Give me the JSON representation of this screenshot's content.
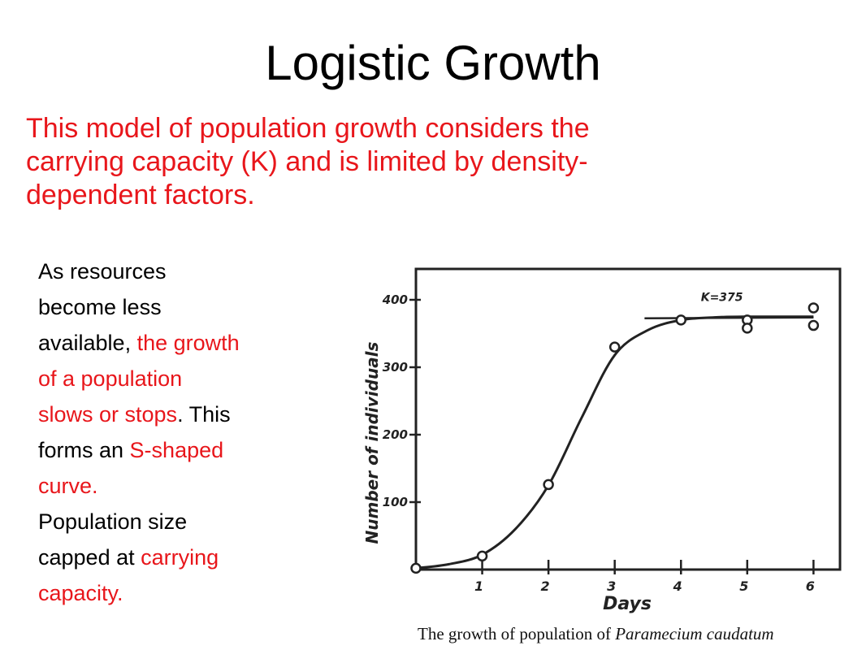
{
  "slide": {
    "title": "Logistic Growth",
    "intro_lines": [
      "This model of population growth considers the",
      "carrying capacity (K)  and is limited by density-",
      "dependent factors."
    ],
    "side_lines": [
      [
        {
          "t": "As resources",
          "red": false
        }
      ],
      [
        {
          "t": "become less",
          "red": false
        }
      ],
      [
        {
          "t": "available, ",
          "red": false
        },
        {
          "t": "the growth",
          "red": true
        }
      ],
      [
        {
          "t": "of a population",
          "red": true
        }
      ],
      [
        {
          "t": "slows or stops",
          "red": true
        },
        {
          "t": ". This",
          "red": false
        }
      ],
      [
        {
          "t": "forms an ",
          "red": false
        },
        {
          "t": "S-shaped",
          "red": true
        }
      ],
      [
        {
          "t": "curve.",
          "red": true
        }
      ],
      [
        {
          "t": " Population size",
          "red": false
        }
      ],
      [
        {
          "t": "capped at ",
          "red": false
        },
        {
          "t": "carrying",
          "red": true
        }
      ],
      [
        {
          "t": "capacity.",
          "red": true
        }
      ]
    ],
    "accent_color": "#e8161b"
  },
  "chart_data": {
    "type": "scatter",
    "xlabel": "Days",
    "ylabel": "Number of individuals",
    "caption_prefix": "The growth of population of ",
    "caption_species": "Paramecium caudatum",
    "annotation": "K=375",
    "xlim": [
      0,
      6.4
    ],
    "ylim": [
      0,
      400
    ],
    "x_ticks": [
      1,
      2,
      3,
      4,
      5,
      6
    ],
    "y_ticks": [
      100,
      200,
      300,
      400
    ],
    "carrying_capacity": 375,
    "grid": false,
    "points": [
      {
        "x": 0,
        "y": 2
      },
      {
        "x": 1,
        "y": 20
      },
      {
        "x": 2,
        "y": 126
      },
      {
        "x": 3,
        "y": 330
      },
      {
        "x": 4,
        "y": 370
      },
      {
        "x": 5,
        "y": 370
      },
      {
        "x": 5,
        "y": 358
      },
      {
        "x": 6,
        "y": 388
      },
      {
        "x": 6,
        "y": 362
      }
    ],
    "curve": [
      {
        "x": 0,
        "y": 2
      },
      {
        "x": 0.5,
        "y": 8
      },
      {
        "x": 1,
        "y": 22
      },
      {
        "x": 1.5,
        "y": 60
      },
      {
        "x": 2,
        "y": 125
      },
      {
        "x": 2.5,
        "y": 225
      },
      {
        "x": 3,
        "y": 318
      },
      {
        "x": 3.5,
        "y": 355
      },
      {
        "x": 4,
        "y": 370
      },
      {
        "x": 4.5,
        "y": 374
      },
      {
        "x": 5,
        "y": 375
      },
      {
        "x": 6,
        "y": 375
      }
    ]
  }
}
